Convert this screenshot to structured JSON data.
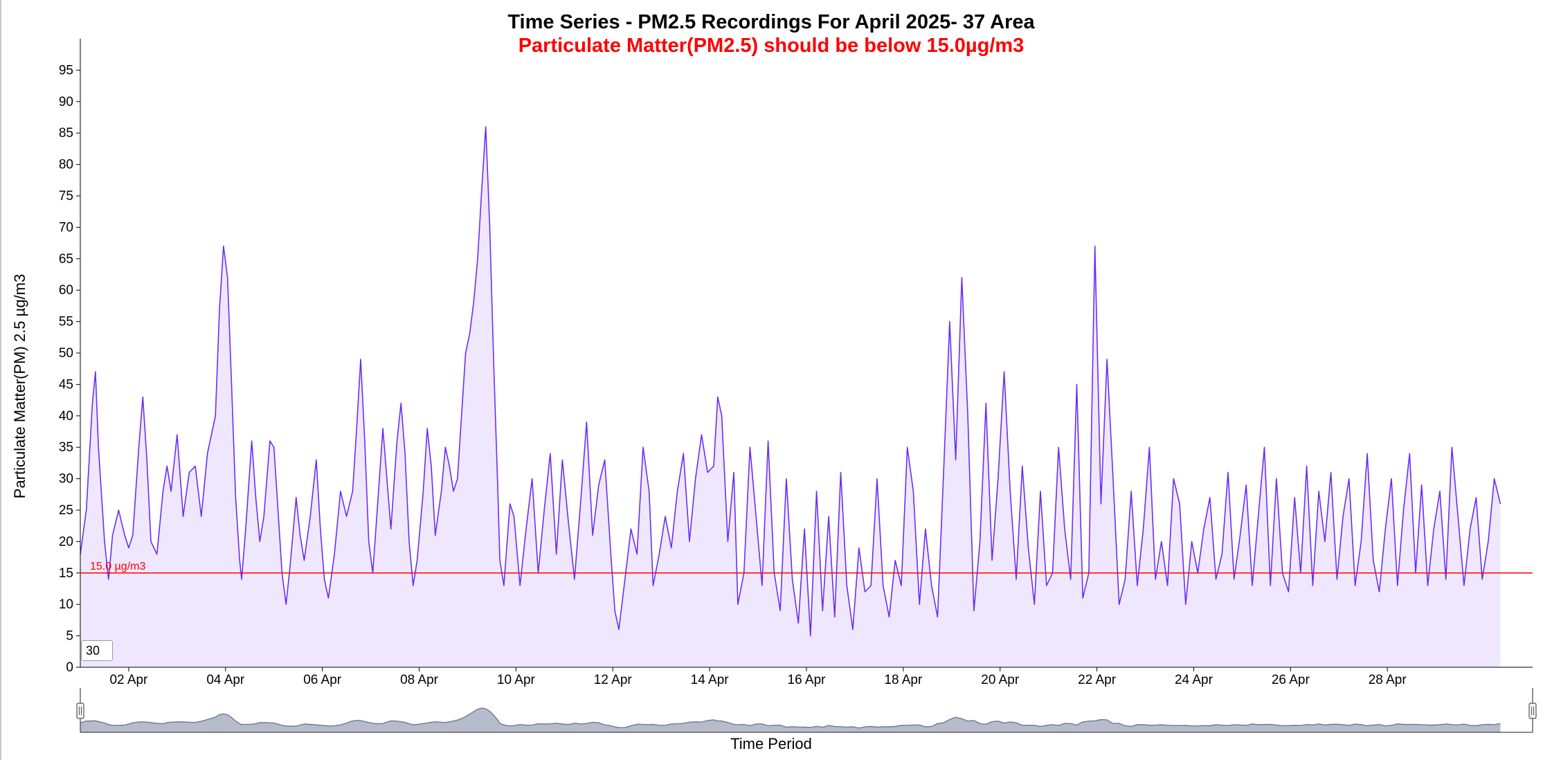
{
  "colors": {
    "line": "#6b2ef5",
    "fill": "#efe7fd",
    "threshold": "#ff0000",
    "navigator_fill": "#b7bccc",
    "navigator_line": "#6f7897"
  },
  "range_input": {
    "value": "30"
  },
  "chart_data": {
    "type": "area",
    "title": "Time Series - PM2.5 Recordings For April 2025- 37 Area",
    "subtitle": "Particulate Matter(PM2.5) should be below 15.0µg/m3",
    "xlabel": "Time Period",
    "ylabel": "Particulate Matter(PM) 2.5 µg/m3",
    "ylim": [
      0,
      100
    ],
    "yticks": [
      0,
      5,
      10,
      15,
      20,
      25,
      30,
      35,
      40,
      45,
      50,
      55,
      60,
      65,
      70,
      75,
      80,
      85,
      90,
      95
    ],
    "xlim": [
      "2025-04-01",
      "2025-04-30"
    ],
    "xtick_labels": [
      "02 Apr",
      "04 Apr",
      "06 Apr",
      "08 Apr",
      "10 Apr",
      "12 Apr",
      "14 Apr",
      "16 Apr",
      "18 Apr",
      "20 Apr",
      "22 Apr",
      "24 Apr",
      "26 Apr",
      "28 Apr"
    ],
    "threshold": {
      "value": 15.0,
      "label": "15.0 µg/m3"
    },
    "grid": false,
    "navigator": true,
    "series": [
      {
        "points": [
          [
            "2025-04-01 00:00",
            18
          ],
          [
            "2025-04-01 03:00",
            25
          ],
          [
            "2025-04-01 06:00",
            42
          ],
          [
            "2025-04-01 07:30",
            47
          ],
          [
            "2025-04-01 09:00",
            35
          ],
          [
            "2025-04-01 12:00",
            20
          ],
          [
            "2025-04-01 14:00",
            14
          ],
          [
            "2025-04-01 16:00",
            21
          ],
          [
            "2025-04-01 19:00",
            25
          ],
          [
            "2025-04-01 22:00",
            21
          ],
          [
            "2025-04-02 00:00",
            19
          ],
          [
            "2025-04-02 02:00",
            21
          ],
          [
            "2025-04-02 05:00",
            35
          ],
          [
            "2025-04-02 07:00",
            43
          ],
          [
            "2025-04-02 09:00",
            33
          ],
          [
            "2025-04-02 11:00",
            20
          ],
          [
            "2025-04-02 14:00",
            18
          ],
          [
            "2025-04-02 17:00",
            28
          ],
          [
            "2025-04-02 19:00",
            32
          ],
          [
            "2025-04-02 21:00",
            28
          ],
          [
            "2025-04-03 00:00",
            37
          ],
          [
            "2025-04-03 03:00",
            24
          ],
          [
            "2025-04-03 06:00",
            31
          ],
          [
            "2025-04-03 09:00",
            32
          ],
          [
            "2025-04-03 12:00",
            24
          ],
          [
            "2025-04-03 15:00",
            34
          ],
          [
            "2025-04-03 19:00",
            40
          ],
          [
            "2025-04-03 21:00",
            57
          ],
          [
            "2025-04-03 23:00",
            67
          ],
          [
            "2025-04-04 01:00",
            62
          ],
          [
            "2025-04-04 03:00",
            45
          ],
          [
            "2025-04-04 05:00",
            27
          ],
          [
            "2025-04-04 07:00",
            17
          ],
          [
            "2025-04-04 08:00",
            14
          ],
          [
            "2025-04-04 10:00",
            22
          ],
          [
            "2025-04-04 13:00",
            36
          ],
          [
            "2025-04-04 15:00",
            27
          ],
          [
            "2025-04-04 17:00",
            20
          ],
          [
            "2025-04-04 19:00",
            24
          ],
          [
            "2025-04-04 22:00",
            36
          ],
          [
            "2025-04-05 00:00",
            35
          ],
          [
            "2025-04-05 02:00",
            25
          ],
          [
            "2025-04-05 04:00",
            15
          ],
          [
            "2025-04-05 06:00",
            10
          ],
          [
            "2025-04-05 08:00",
            16
          ],
          [
            "2025-04-05 11:00",
            27
          ],
          [
            "2025-04-05 13:00",
            21
          ],
          [
            "2025-04-05 15:00",
            17
          ],
          [
            "2025-04-05 18:00",
            24
          ],
          [
            "2025-04-05 21:00",
            33
          ],
          [
            "2025-04-05 23:00",
            22
          ],
          [
            "2025-04-06 01:00",
            14
          ],
          [
            "2025-04-06 03:00",
            11
          ],
          [
            "2025-04-06 06:00",
            18
          ],
          [
            "2025-04-06 09:00",
            28
          ],
          [
            "2025-04-06 12:00",
            24
          ],
          [
            "2025-04-06 15:00",
            28
          ],
          [
            "2025-04-06 17:00",
            38
          ],
          [
            "2025-04-06 19:00",
            49
          ],
          [
            "2025-04-06 21:00",
            36
          ],
          [
            "2025-04-06 23:00",
            20
          ],
          [
            "2025-04-07 01:00",
            15
          ],
          [
            "2025-04-07 03:00",
            24
          ],
          [
            "2025-04-07 06:00",
            38
          ],
          [
            "2025-04-07 08:00",
            30
          ],
          [
            "2025-04-07 10:00",
            22
          ],
          [
            "2025-04-07 13:00",
            36
          ],
          [
            "2025-04-07 15:00",
            42
          ],
          [
            "2025-04-07 17:00",
            34
          ],
          [
            "2025-04-07 19:00",
            20
          ],
          [
            "2025-04-07 21:00",
            13
          ],
          [
            "2025-04-07 23:00",
            17
          ],
          [
            "2025-04-08 02:00",
            28
          ],
          [
            "2025-04-08 04:00",
            38
          ],
          [
            "2025-04-08 06:00",
            32
          ],
          [
            "2025-04-08 08:00",
            21
          ],
          [
            "2025-04-08 11:00",
            28
          ],
          [
            "2025-04-08 13:00",
            35
          ],
          [
            "2025-04-08 15:00",
            32
          ],
          [
            "2025-04-08 17:00",
            28
          ],
          [
            "2025-04-08 19:00",
            30
          ],
          [
            "2025-04-08 21:00",
            40
          ],
          [
            "2025-04-08 23:00",
            50
          ],
          [
            "2025-04-09 01:00",
            53
          ],
          [
            "2025-04-09 03:00",
            58
          ],
          [
            "2025-04-09 05:00",
            65
          ],
          [
            "2025-04-09 07:00",
            76
          ],
          [
            "2025-04-09 09:00",
            86
          ],
          [
            "2025-04-09 11:00",
            70
          ],
          [
            "2025-04-09 13:00",
            48
          ],
          [
            "2025-04-09 15:00",
            28
          ],
          [
            "2025-04-09 16:00",
            17
          ],
          [
            "2025-04-09 18:00",
            13
          ],
          [
            "2025-04-09 21:00",
            26
          ],
          [
            "2025-04-09 23:00",
            24
          ],
          [
            "2025-04-10 02:00",
            13
          ],
          [
            "2025-04-10 05:00",
            22
          ],
          [
            "2025-04-10 08:00",
            30
          ],
          [
            "2025-04-10 11:00",
            15
          ],
          [
            "2025-04-10 14:00",
            25
          ],
          [
            "2025-04-10 17:00",
            34
          ],
          [
            "2025-04-10 20:00",
            18
          ],
          [
            "2025-04-10 23:00",
            33
          ],
          [
            "2025-04-11 02:00",
            23
          ],
          [
            "2025-04-11 05:00",
            14
          ],
          [
            "2025-04-11 08:00",
            26
          ],
          [
            "2025-04-11 11:00",
            39
          ],
          [
            "2025-04-11 14:00",
            21
          ],
          [
            "2025-04-11 17:00",
            29
          ],
          [
            "2025-04-11 20:00",
            33
          ],
          [
            "2025-04-11 23:00",
            18
          ],
          [
            "2025-04-12 01:00",
            9
          ],
          [
            "2025-04-12 03:00",
            6
          ],
          [
            "2025-04-12 06:00",
            14
          ],
          [
            "2025-04-12 09:00",
            22
          ],
          [
            "2025-04-12 12:00",
            18
          ],
          [
            "2025-04-12 15:00",
            35
          ],
          [
            "2025-04-12 18:00",
            28
          ],
          [
            "2025-04-12 20:00",
            13
          ],
          [
            "2025-04-12 23:00",
            18
          ],
          [
            "2025-04-13 02:00",
            24
          ],
          [
            "2025-04-13 05:00",
            19
          ],
          [
            "2025-04-13 08:00",
            28
          ],
          [
            "2025-04-13 11:00",
            34
          ],
          [
            "2025-04-13 14:00",
            20
          ],
          [
            "2025-04-13 17:00",
            30
          ],
          [
            "2025-04-13 20:00",
            37
          ],
          [
            "2025-04-13 23:00",
            31
          ],
          [
            "2025-04-14 02:00",
            32
          ],
          [
            "2025-04-14 04:00",
            43
          ],
          [
            "2025-04-14 06:00",
            40
          ],
          [
            "2025-04-14 09:00",
            20
          ],
          [
            "2025-04-14 12:00",
            31
          ],
          [
            "2025-04-14 14:00",
            10
          ],
          [
            "2025-04-14 17:00",
            15
          ],
          [
            "2025-04-14 20:00",
            35
          ],
          [
            "2025-04-14 23:00",
            24
          ],
          [
            "2025-04-15 02:00",
            13
          ],
          [
            "2025-04-15 05:00",
            36
          ],
          [
            "2025-04-15 08:00",
            15
          ],
          [
            "2025-04-15 11:00",
            9
          ],
          [
            "2025-04-15 14:00",
            30
          ],
          [
            "2025-04-15 17:00",
            14
          ],
          [
            "2025-04-15 20:00",
            7
          ],
          [
            "2025-04-15 23:00",
            22
          ],
          [
            "2025-04-16 02:00",
            5
          ],
          [
            "2025-04-16 05:00",
            28
          ],
          [
            "2025-04-16 08:00",
            9
          ],
          [
            "2025-04-16 11:00",
            24
          ],
          [
            "2025-04-16 14:00",
            8
          ],
          [
            "2025-04-16 17:00",
            31
          ],
          [
            "2025-04-16 20:00",
            13
          ],
          [
            "2025-04-16 23:00",
            6
          ],
          [
            "2025-04-17 02:00",
            19
          ],
          [
            "2025-04-17 05:00",
            12
          ],
          [
            "2025-04-17 08:00",
            13
          ],
          [
            "2025-04-17 11:00",
            30
          ],
          [
            "2025-04-17 14:00",
            13
          ],
          [
            "2025-04-17 17:00",
            8
          ],
          [
            "2025-04-17 20:00",
            17
          ],
          [
            "2025-04-17 23:00",
            13
          ],
          [
            "2025-04-18 02:00",
            35
          ],
          [
            "2025-04-18 05:00",
            28
          ],
          [
            "2025-04-18 08:00",
            10
          ],
          [
            "2025-04-18 11:00",
            22
          ],
          [
            "2025-04-18 14:00",
            13
          ],
          [
            "2025-04-18 17:00",
            8
          ],
          [
            "2025-04-18 20:00",
            31
          ],
          [
            "2025-04-18 23:00",
            55
          ],
          [
            "2025-04-19 02:00",
            33
          ],
          [
            "2025-04-19 05:00",
            62
          ],
          [
            "2025-04-19 08:00",
            40
          ],
          [
            "2025-04-19 11:00",
            9
          ],
          [
            "2025-04-19 14:00",
            20
          ],
          [
            "2025-04-19 17:00",
            42
          ],
          [
            "2025-04-19 20:00",
            17
          ],
          [
            "2025-04-19 23:00",
            30
          ],
          [
            "2025-04-20 02:00",
            47
          ],
          [
            "2025-04-20 05:00",
            28
          ],
          [
            "2025-04-20 08:00",
            14
          ],
          [
            "2025-04-20 11:00",
            32
          ],
          [
            "2025-04-20 14:00",
            19
          ],
          [
            "2025-04-20 17:00",
            10
          ],
          [
            "2025-04-20 20:00",
            28
          ],
          [
            "2025-04-20 23:00",
            13
          ],
          [
            "2025-04-21 02:00",
            15
          ],
          [
            "2025-04-21 05:00",
            35
          ],
          [
            "2025-04-21 08:00",
            22
          ],
          [
            "2025-04-21 11:00",
            14
          ],
          [
            "2025-04-21 14:00",
            45
          ],
          [
            "2025-04-21 17:00",
            11
          ],
          [
            "2025-04-21 20:00",
            15
          ],
          [
            "2025-04-21 23:00",
            67
          ],
          [
            "2025-04-22 02:00",
            26
          ],
          [
            "2025-04-22 05:00",
            49
          ],
          [
            "2025-04-22 08:00",
            30
          ],
          [
            "2025-04-22 11:00",
            10
          ],
          [
            "2025-04-22 14:00",
            14
          ],
          [
            "2025-04-22 17:00",
            28
          ],
          [
            "2025-04-22 20:00",
            13
          ],
          [
            "2025-04-22 23:00",
            22
          ],
          [
            "2025-04-23 02:00",
            35
          ],
          [
            "2025-04-23 05:00",
            14
          ],
          [
            "2025-04-23 08:00",
            20
          ],
          [
            "2025-04-23 11:00",
            13
          ],
          [
            "2025-04-23 14:00",
            30
          ],
          [
            "2025-04-23 17:00",
            26
          ],
          [
            "2025-04-23 20:00",
            10
          ],
          [
            "2025-04-23 23:00",
            20
          ],
          [
            "2025-04-24 02:00",
            15
          ],
          [
            "2025-04-24 05:00",
            22
          ],
          [
            "2025-04-24 08:00",
            27
          ],
          [
            "2025-04-24 11:00",
            14
          ],
          [
            "2025-04-24 14:00",
            18
          ],
          [
            "2025-04-24 17:00",
            31
          ],
          [
            "2025-04-24 20:00",
            14
          ],
          [
            "2025-04-24 23:00",
            21
          ],
          [
            "2025-04-25 02:00",
            29
          ],
          [
            "2025-04-25 05:00",
            13
          ],
          [
            "2025-04-25 08:00",
            24
          ],
          [
            "2025-04-25 11:00",
            35
          ],
          [
            "2025-04-25 14:00",
            13
          ],
          [
            "2025-04-25 17:00",
            30
          ],
          [
            "2025-04-25 20:00",
            15
          ],
          [
            "2025-04-25 23:00",
            12
          ],
          [
            "2025-04-26 02:00",
            27
          ],
          [
            "2025-04-26 05:00",
            15
          ],
          [
            "2025-04-26 08:00",
            32
          ],
          [
            "2025-04-26 11:00",
            13
          ],
          [
            "2025-04-26 14:00",
            28
          ],
          [
            "2025-04-26 17:00",
            20
          ],
          [
            "2025-04-26 20:00",
            31
          ],
          [
            "2025-04-26 23:00",
            14
          ],
          [
            "2025-04-27 02:00",
            24
          ],
          [
            "2025-04-27 05:00",
            30
          ],
          [
            "2025-04-27 08:00",
            13
          ],
          [
            "2025-04-27 11:00",
            20
          ],
          [
            "2025-04-27 14:00",
            34
          ],
          [
            "2025-04-27 17:00",
            17
          ],
          [
            "2025-04-27 20:00",
            12
          ],
          [
            "2025-04-27 23:00",
            22
          ],
          [
            "2025-04-28 02:00",
            30
          ],
          [
            "2025-04-28 05:00",
            13
          ],
          [
            "2025-04-28 08:00",
            25
          ],
          [
            "2025-04-28 11:00",
            34
          ],
          [
            "2025-04-28 14:00",
            15
          ],
          [
            "2025-04-28 17:00",
            29
          ],
          [
            "2025-04-28 20:00",
            13
          ],
          [
            "2025-04-28 23:00",
            22
          ],
          [
            "2025-04-29 02:00",
            28
          ],
          [
            "2025-04-29 05:00",
            14
          ],
          [
            "2025-04-29 08:00",
            35
          ],
          [
            "2025-04-29 11:00",
            24
          ],
          [
            "2025-04-29 14:00",
            13
          ],
          [
            "2025-04-29 17:00",
            22
          ],
          [
            "2025-04-29 20:00",
            27
          ],
          [
            "2025-04-29 23:00",
            14
          ],
          [
            "2025-04-30 02:00",
            20
          ],
          [
            "2025-04-30 05:00",
            30
          ],
          [
            "2025-04-30 08:00",
            26
          ]
        ]
      }
    ]
  }
}
